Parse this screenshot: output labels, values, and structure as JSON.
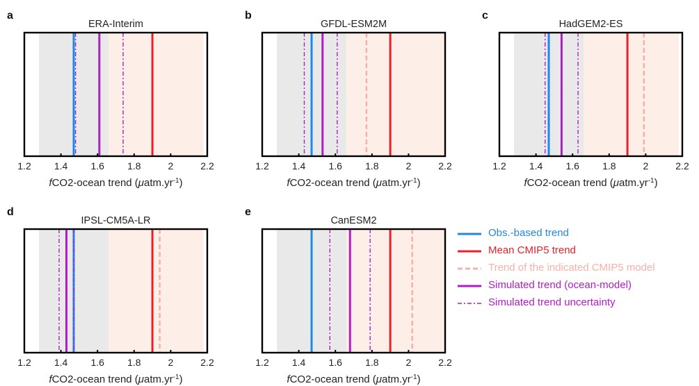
{
  "colors": {
    "obs": "#1f88e5",
    "mean_cmip5": "#e8202a",
    "indicated_model": "#f7b1a6",
    "simulated": "#b11cc9",
    "grey_band": "#e9e9e9",
    "pink_band": "#fdeee8"
  },
  "legend": {
    "items": [
      {
        "label": "Obs.-based trend",
        "color": "#1f88e5",
        "style": "solid"
      },
      {
        "label": "Mean CMIP5 trend",
        "color": "#e8202a",
        "style": "solid"
      },
      {
        "label": "Trend of the indicated CMIP5 model",
        "color": "#f7b1a6",
        "style": "dashed"
      },
      {
        "label": "Simulated trend (ocean-model)",
        "color": "#b11cc9",
        "style": "solid"
      },
      {
        "label": "Simulated trend uncertainty",
        "color": "#b11cc9",
        "style": "dashdot"
      }
    ]
  },
  "chart_data": [
    {
      "type": "vline",
      "panel_letter": "a",
      "title": "ERA-Interim",
      "xlabel_prefix": "f",
      "xlabel_main": "CO2-ocean trend (",
      "xlabel_mu": "μ",
      "xlabel_unit": "atm.yr",
      "xlabel_sup": "-1",
      "xlabel_end": ")",
      "xlim": [
        1.2,
        2.2
      ],
      "xticks": [
        "1.2",
        "1.4",
        "1.6",
        "1.8",
        "2",
        "2.2"
      ],
      "obs_range": [
        1.28,
        1.66
      ],
      "cmip5_range": [
        1.66,
        2.18
      ],
      "obs_trend": 1.47,
      "mean_cmip5_trend": 1.9,
      "model_trend": null,
      "simulated_trend": 1.61,
      "simulated_uncertainty": [
        1.48,
        1.74
      ]
    },
    {
      "type": "vline",
      "panel_letter": "b",
      "title": "GFDL-ESM2M",
      "xlabel_prefix": "f",
      "xlabel_main": "CO2-ocean trend (",
      "xlabel_mu": "μ",
      "xlabel_unit": "atm.yr",
      "xlabel_sup": "-1",
      "xlabel_end": ")",
      "xlim": [
        1.2,
        2.2
      ],
      "xticks": [
        "1.2",
        "1.4",
        "1.6",
        "1.8",
        "2",
        "2.2"
      ],
      "obs_range": [
        1.28,
        1.66
      ],
      "cmip5_range": [
        1.66,
        2.2
      ],
      "obs_trend": 1.47,
      "mean_cmip5_trend": 1.9,
      "model_trend": 1.77,
      "simulated_trend": 1.53,
      "simulated_uncertainty": [
        1.43,
        1.61
      ]
    },
    {
      "type": "vline",
      "panel_letter": "c",
      "title": "HadGEM2-ES",
      "xlabel_prefix": "f",
      "xlabel_main": "CO2-ocean trend (",
      "xlabel_mu": "μ",
      "xlabel_unit": "atm.yr",
      "xlabel_sup": "-1",
      "xlabel_end": ")",
      "xlim": [
        1.2,
        2.2
      ],
      "xticks": [
        "1.2",
        "1.4",
        "1.6",
        "1.8",
        "2",
        "2.2"
      ],
      "obs_range": [
        1.28,
        1.66
      ],
      "cmip5_range": [
        1.66,
        2.18
      ],
      "obs_trend": 1.47,
      "mean_cmip5_trend": 1.9,
      "model_trend": 1.99,
      "simulated_trend": 1.54,
      "simulated_uncertainty": [
        1.45,
        1.63
      ]
    },
    {
      "type": "vline",
      "panel_letter": "d",
      "title": "IPSL-CM5A-LR",
      "xlabel_prefix": "f",
      "xlabel_main": "CO2-ocean trend (",
      "xlabel_mu": "μ",
      "xlabel_unit": "atm.yr",
      "xlabel_sup": "-1",
      "xlabel_end": ")",
      "xlim": [
        1.2,
        2.2
      ],
      "xticks": [
        "1.2",
        "1.4",
        "1.6",
        "1.8",
        "2",
        "2.2"
      ],
      "obs_range": [
        1.28,
        1.66
      ],
      "cmip5_range": [
        1.66,
        2.18
      ],
      "obs_trend": 1.47,
      "mean_cmip5_trend": 1.9,
      "model_trend": 1.94,
      "simulated_trend": 1.43,
      "simulated_uncertainty": [
        1.39,
        1.47
      ]
    },
    {
      "type": "vline",
      "panel_letter": "e",
      "title": "CanESM2",
      "xlabel_prefix": "f",
      "xlabel_main": "CO2-ocean trend (",
      "xlabel_mu": "μ",
      "xlabel_unit": "atm.yr",
      "xlabel_sup": "-1",
      "xlabel_end": ")",
      "xlim": [
        1.2,
        2.2
      ],
      "xticks": [
        "1.2",
        "1.4",
        "1.6",
        "1.8",
        "2",
        "2.2"
      ],
      "obs_range": [
        1.28,
        1.66
      ],
      "cmip5_range": [
        1.66,
        2.2
      ],
      "obs_trend": 1.47,
      "mean_cmip5_trend": 1.9,
      "model_trend": 2.02,
      "simulated_trend": 1.68,
      "simulated_uncertainty": [
        1.57,
        1.79
      ]
    }
  ]
}
